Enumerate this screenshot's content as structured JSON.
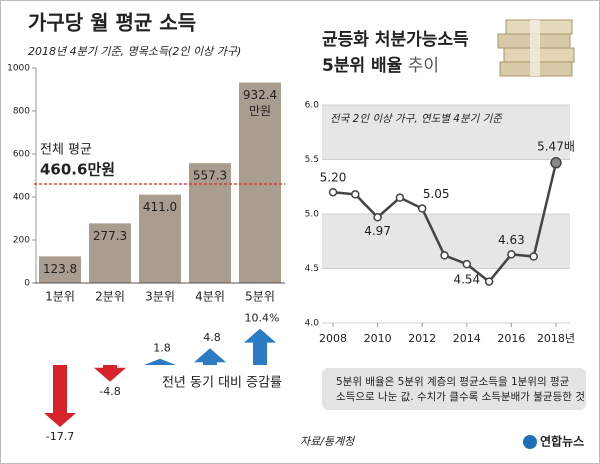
{
  "chart_data": [
    {
      "type": "bar",
      "title": "가구당 월 평균 소득",
      "subtitle": "2018년 4분기 기준, 명목소득(2인 이상 가구)",
      "categories": [
        "1분위",
        "2분위",
        "3분위",
        "4분위",
        "5분위"
      ],
      "values": [
        123.8,
        277.3,
        411.0,
        557.3,
        932.4
      ],
      "value_labels": [
        "123.8",
        "277.3",
        "411.0",
        "557.3",
        "932.4"
      ],
      "unit_label": "만원",
      "color": "#a99d8f",
      "ylim": [
        0,
        1000
      ],
      "yticks": [
        0,
        200,
        400,
        600,
        800,
        1000
      ],
      "average": {
        "label": "전체 평균",
        "value": 460.6,
        "value_label": "460.6만원",
        "color": "#e0262a"
      }
    },
    {
      "type": "arrow",
      "caption": "전년 동기 대비 증감률",
      "values": [
        -17.7,
        -4.8,
        1.8,
        4.8,
        10.4
      ],
      "value_labels": [
        "-17.7",
        "-4.8",
        "1.8",
        "4.8",
        "10.4%"
      ],
      "colors": {
        "negative": "#d7242b",
        "positive": "#2b7bc4"
      }
    },
    {
      "type": "line",
      "title": "균등화 처분가능소득",
      "title_line2": "5분위 배율",
      "title_line2_suffix": "추이",
      "subtitle": "전국 2인 이상 가구, 연도별 4분기 기준",
      "x": [
        2008,
        2009,
        2010,
        2011,
        2012,
        2013,
        2014,
        2015,
        2016,
        2017,
        2018
      ],
      "values": [
        5.2,
        5.18,
        4.97,
        5.15,
        5.05,
        4.62,
        4.54,
        4.38,
        4.63,
        4.61,
        5.47
      ],
      "value_labels": [
        "5.20",
        null,
        "4.97",
        null,
        "5.05",
        null,
        "4.54",
        null,
        "4.63",
        null,
        "5.47배"
      ],
      "color": "#444444",
      "bands": true,
      "xlim": [
        2008,
        2018
      ],
      "xticks": [
        2008,
        2010,
        2012,
        2014,
        2016,
        {
          "value": 2018,
          "label": "2018년"
        }
      ],
      "ylim": [
        4.0,
        6.0
      ],
      "yticks": [
        {
          "value": 4,
          "label": "4.0"
        },
        4.5,
        {
          "value": 5,
          "label": "5.0"
        },
        5.5,
        {
          "value": 6,
          "label": "6.0"
        }
      ],
      "note": [
        "5분위 배율은 5분위 계층의 평균소득을 1분위의 평균",
        "소득으로 나눈 값. 수치가 클수록 소득분배가 불균등한 것"
      ]
    }
  ],
  "source": "자료/통계청",
  "logo": "연합뉴스"
}
